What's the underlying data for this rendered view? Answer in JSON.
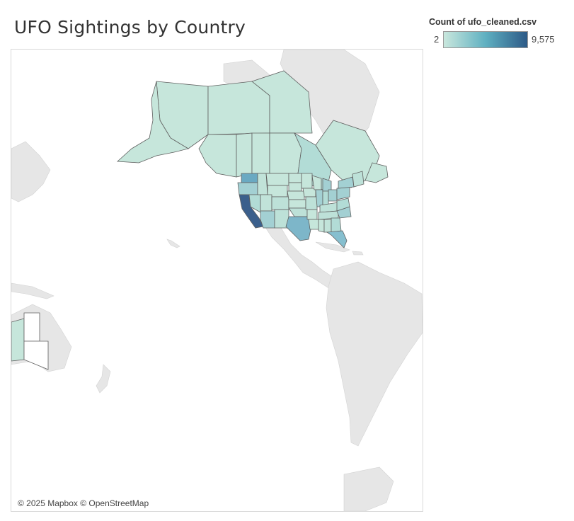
{
  "title": "UFO Sightings by Country",
  "legend": {
    "title": "Count of ufo_cleaned.csv",
    "min_label": "2",
    "max_label": "9,575",
    "min_value": 2,
    "max_value": 9575,
    "color_low": "#c9e7dd",
    "color_mid": "#5fb0c1",
    "color_high": "#2d5a87"
  },
  "attribution": "© 2025 Mapbox © OpenStreetMap",
  "colors": {
    "land": "#e6e6e6",
    "water": "#ffffff",
    "region_border": "#606060",
    "low": "#c9e7dd",
    "california": "#3b5f8c",
    "washington": "#6aa9c2",
    "texas": "#7db6c9",
    "florida": "#86bfcf"
  }
}
